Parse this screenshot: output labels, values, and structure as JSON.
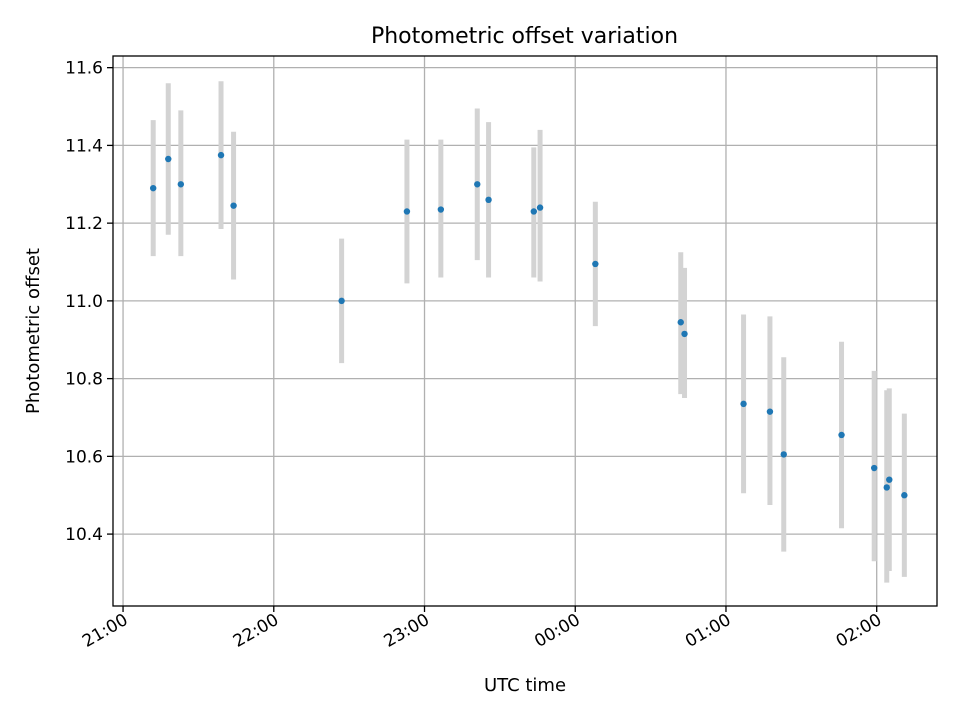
{
  "chart_data": {
    "type": "scatter",
    "title": "Photometric offset variation",
    "xlabel": "UTC time",
    "ylabel": "Photometric offset",
    "x_unit": "minutes since 21:00 UTC",
    "xlim": [
      -4,
      324
    ],
    "ylim": [
      10.215,
      11.63
    ],
    "x_ticks": [
      {
        "value": 0,
        "label": "21:00"
      },
      {
        "value": 60,
        "label": "22:00"
      },
      {
        "value": 120,
        "label": "23:00"
      },
      {
        "value": 180,
        "label": "00:00"
      },
      {
        "value": 240,
        "label": "01:00"
      },
      {
        "value": 300,
        "label": "02:00"
      }
    ],
    "y_ticks": [
      {
        "value": 10.4,
        "label": "10.4"
      },
      {
        "value": 10.6,
        "label": "10.6"
      },
      {
        "value": 10.8,
        "label": "10.8"
      },
      {
        "value": 11.0,
        "label": "11.0"
      },
      {
        "value": 11.2,
        "label": "11.2"
      },
      {
        "value": 11.4,
        "label": "11.4"
      },
      {
        "value": 11.6,
        "label": "11.6"
      }
    ],
    "grid": true,
    "marker_color": "#1f77b4",
    "errorbar_color": "#d3d3d3",
    "points": [
      {
        "x": 12.0,
        "y": 11.29,
        "low": 11.115,
        "high": 11.465
      },
      {
        "x": 18.0,
        "y": 11.365,
        "low": 11.17,
        "high": 11.56
      },
      {
        "x": 23.0,
        "y": 11.3,
        "low": 11.115,
        "high": 11.49
      },
      {
        "x": 39.0,
        "y": 11.375,
        "low": 11.185,
        "high": 11.565
      },
      {
        "x": 44.0,
        "y": 11.245,
        "low": 11.055,
        "high": 11.435
      },
      {
        "x": 87.0,
        "y": 11.0,
        "low": 10.84,
        "high": 11.16
      },
      {
        "x": 113.0,
        "y": 11.23,
        "low": 11.045,
        "high": 11.415
      },
      {
        "x": 126.5,
        "y": 11.235,
        "low": 11.06,
        "high": 11.415
      },
      {
        "x": 141.0,
        "y": 11.3,
        "low": 11.105,
        "high": 11.495
      },
      {
        "x": 145.5,
        "y": 11.26,
        "low": 11.06,
        "high": 11.46
      },
      {
        "x": 163.5,
        "y": 11.23,
        "low": 11.06,
        "high": 11.395
      },
      {
        "x": 166.0,
        "y": 11.24,
        "low": 11.05,
        "high": 11.44
      },
      {
        "x": 188.0,
        "y": 11.095,
        "low": 10.935,
        "high": 11.255
      },
      {
        "x": 222.0,
        "y": 10.945,
        "low": 10.76,
        "high": 11.125
      },
      {
        "x": 223.5,
        "y": 10.915,
        "low": 10.75,
        "high": 11.085
      },
      {
        "x": 247.0,
        "y": 10.735,
        "low": 10.505,
        "high": 10.965
      },
      {
        "x": 257.5,
        "y": 10.715,
        "low": 10.475,
        "high": 10.96
      },
      {
        "x": 263.0,
        "y": 10.605,
        "low": 10.355,
        "high": 10.855
      },
      {
        "x": 286.0,
        "y": 10.655,
        "low": 10.415,
        "high": 10.895
      },
      {
        "x": 299.0,
        "y": 10.57,
        "low": 10.33,
        "high": 10.82
      },
      {
        "x": 304.0,
        "y": 10.52,
        "low": 10.275,
        "high": 10.77
      },
      {
        "x": 305.0,
        "y": 10.54,
        "low": 10.305,
        "high": 10.775
      },
      {
        "x": 311.0,
        "y": 10.5,
        "low": 10.29,
        "high": 10.71
      }
    ]
  }
}
